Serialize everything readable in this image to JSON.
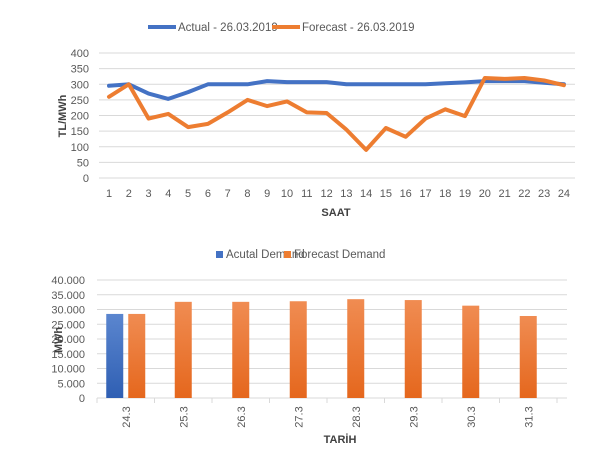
{
  "chart_data": [
    {
      "type": "line",
      "title": "",
      "xlabel": "SAAT",
      "ylabel": "TL/MWh",
      "ylim": [
        0,
        400
      ],
      "yticks": [
        "0",
        "50",
        "100",
        "150",
        "200",
        "250",
        "300",
        "350",
        "400"
      ],
      "ytick_values": [
        0,
        50,
        100,
        150,
        200,
        250,
        300,
        350,
        400
      ],
      "grid": true,
      "legend_position": "top",
      "x": [
        1,
        2,
        3,
        4,
        5,
        6,
        7,
        8,
        9,
        10,
        11,
        12,
        13,
        14,
        15,
        16,
        17,
        18,
        19,
        20,
        21,
        22,
        23,
        24
      ],
      "x_labels": [
        "1",
        "2",
        "3",
        "4",
        "5",
        "6",
        "7",
        "8",
        "9",
        "10",
        "11",
        "12",
        "13",
        "14",
        "15",
        "16",
        "17",
        "18",
        "19",
        "20",
        "21",
        "22",
        "23",
        "24"
      ],
      "series": [
        {
          "name": "Actual - 26.03.2019",
          "color": "#4472C4",
          "values": [
            295,
            300,
            270,
            253,
            275,
            300,
            300,
            300,
            310,
            307,
            307,
            307,
            300,
            300,
            300,
            300,
            300,
            303,
            306,
            310,
            310,
            310,
            305,
            300
          ]
        },
        {
          "name": "Forecast - 26.03.2019",
          "color": "#ED7D31",
          "values": [
            260,
            300,
            190,
            205,
            163,
            173,
            210,
            250,
            230,
            245,
            210,
            208,
            155,
            90,
            160,
            132,
            190,
            220,
            198,
            320,
            317,
            320,
            312,
            297
          ]
        }
      ]
    },
    {
      "type": "bar",
      "title": "",
      "xlabel": "TARİH",
      "ylabel": "MWh",
      "ylim": [
        0,
        40000
      ],
      "yticks": [
        "0",
        "5.000",
        "10.000",
        "15.000",
        "20.000",
        "25.000",
        "30.000",
        "35.000",
        "40.000"
      ],
      "ytick_values": [
        0,
        5000,
        10000,
        15000,
        20000,
        25000,
        30000,
        35000,
        40000
      ],
      "grid": true,
      "legend_position": "top",
      "categories": [
        "24.3",
        "25.3",
        "26.3",
        "27.3",
        "28.3",
        "29.3",
        "30.3",
        "31.3"
      ],
      "series": [
        {
          "name": "Acutal Demand",
          "color": "#4472C4",
          "values": [
            28500,
            null,
            null,
            null,
            null,
            null,
            null,
            null
          ]
        },
        {
          "name": "Forecast Demand",
          "color": "#ED7D31",
          "values": [
            28500,
            32600,
            32600,
            32800,
            33500,
            33200,
            31300,
            27800
          ]
        }
      ]
    }
  ]
}
